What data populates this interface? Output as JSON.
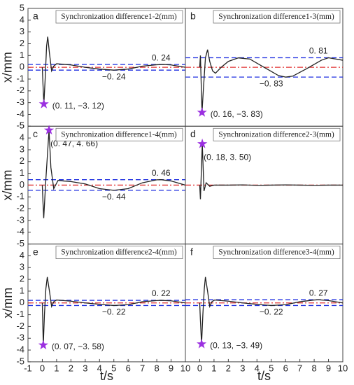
{
  "chart_data": [
    {
      "type": "line",
      "letter": "a",
      "title": "Synchronization difference1-2(mm)",
      "xlim": [
        -1,
        10
      ],
      "ylim": [
        -5,
        5
      ],
      "yticks": [
        -5,
        -4,
        -3,
        -2,
        -1,
        0,
        1,
        2,
        3,
        4,
        5
      ],
      "ylabel": "x/mm",
      "x": [
        0,
        0.05,
        0.11,
        0.2,
        0.3,
        0.38,
        0.5,
        0.65,
        0.8,
        1,
        1.5,
        2,
        3,
        4,
        5,
        6,
        7,
        8,
        8.5,
        9,
        10
      ],
      "series": [
        {
          "color": "#222222",
          "values": [
            0,
            -1.5,
            -3.12,
            -1,
            1.8,
            2.6,
            1.2,
            -0.3,
            0.1,
            0.3,
            0.25,
            0.2,
            0,
            -0.15,
            -0.24,
            -0.15,
            0.1,
            0.22,
            0.24,
            0.2,
            0
          ]
        }
      ],
      "bands": [
        {
          "value": 0.24,
          "label": "0. 24"
        },
        {
          "value": -0.24,
          "label": "−0. 24"
        }
      ],
      "band_color": "#1f2fe0",
      "zero_color": "#e03030",
      "star": {
        "x": 0.11,
        "y": -3.12,
        "label": "(0. 11, −3. 12)",
        "color": "#9b30e0"
      }
    },
    {
      "type": "line",
      "letter": "b",
      "title": "Synchronization difference1-3(mm)",
      "xlim": [
        -1,
        10
      ],
      "ylim": [
        -5,
        5
      ],
      "x": [
        0,
        0.05,
        0.16,
        0.25,
        0.4,
        0.55,
        0.7,
        0.9,
        1.1,
        1.5,
        2,
        2.7,
        3.5,
        4.5,
        5.5,
        6,
        6.5,
        7.5,
        8.5,
        9,
        10
      ],
      "series": [
        {
          "color": "#222222",
          "values": [
            0,
            1.0,
            -3.83,
            -2,
            0.8,
            1.5,
            0.5,
            -0.3,
            -0.5,
            0,
            0.5,
            0.8,
            0.7,
            0,
            -0.7,
            -0.83,
            -0.75,
            -0.1,
            0.6,
            0.81,
            0.6
          ]
        }
      ],
      "bands": [
        {
          "value": 0.81,
          "label": "0. 81"
        },
        {
          "value": -0.83,
          "label": "−0. 83"
        }
      ],
      "band_color": "#1f2fe0",
      "zero_color": "#e03030",
      "star": {
        "x": 0.16,
        "y": -3.83,
        "label": "(0. 16, −3. 83)",
        "color": "#9b30e0"
      }
    },
    {
      "type": "line",
      "letter": "c",
      "title": "Synchronization difference1-4(mm)",
      "xlim": [
        -1,
        10
      ],
      "ylim": [
        -5,
        5
      ],
      "yticks": [
        -5,
        -4,
        -3,
        -2,
        -1,
        0,
        1,
        2,
        3,
        4,
        5
      ],
      "ylabel": "x/mm",
      "x": [
        0,
        0.05,
        0.1,
        0.25,
        0.47,
        0.6,
        0.8,
        1.1,
        1.5,
        2,
        3,
        4,
        5,
        6,
        7,
        8,
        8.3,
        9,
        10
      ],
      "series": [
        {
          "color": "#222222",
          "values": [
            0,
            -1.5,
            -2.8,
            0.5,
            4.66,
            1.5,
            -0.3,
            0.4,
            0.35,
            0.3,
            0.1,
            -0.3,
            -0.44,
            -0.3,
            0.2,
            0.45,
            0.46,
            0.35,
            0
          ]
        }
      ],
      "bands": [
        {
          "value": 0.46,
          "label": "0. 46"
        },
        {
          "value": -0.44,
          "label": "−0. 44"
        }
      ],
      "band_color": "#1f2fe0",
      "zero_color": "#e03030",
      "star": {
        "x": 0.47,
        "y": 4.66,
        "label": "(0. 47, 4. 66)",
        "color": "#9b30e0"
      }
    },
    {
      "type": "line",
      "letter": "d",
      "title": "Synchronization difference2-3(mm)",
      "xlim": [
        -1,
        10
      ],
      "ylim": [
        -5,
        5
      ],
      "x": [
        0,
        0.05,
        0.18,
        0.3,
        0.45,
        0.7,
        1,
        2,
        3,
        4,
        5,
        6,
        7,
        8,
        9,
        10
      ],
      "series": [
        {
          "color": "#222222",
          "values": [
            0,
            -1.2,
            3.5,
            -0.5,
            0.2,
            -0.1,
            0,
            0,
            0.02,
            -0.02,
            0,
            0.02,
            0,
            -0.02,
            0,
            0
          ]
        }
      ],
      "zero_color": "#e03030",
      "star": {
        "x": 0.18,
        "y": 3.5,
        "label": "(0. 18, 3. 50)",
        "color": "#9b30e0"
      }
    },
    {
      "type": "line",
      "letter": "e",
      "title": "Synchronization difference2-4(mm)",
      "xlim": [
        -1,
        10
      ],
      "ylim": [
        -5,
        5
      ],
      "yticks": [
        -5,
        -4,
        -3,
        -2,
        -1,
        0,
        1,
        2,
        3,
        4
      ],
      "ylabel": "x/mm",
      "xticks": [
        -1,
        0,
        1,
        2,
        3,
        4,
        5,
        6,
        7,
        8,
        9,
        10
      ],
      "xlabel": "t/s",
      "x": [
        0,
        0.03,
        0.07,
        0.15,
        0.25,
        0.35,
        0.5,
        0.65,
        0.8,
        1,
        1.5,
        2,
        3,
        4,
        5,
        6,
        7,
        8,
        8.3,
        9,
        10
      ],
      "series": [
        {
          "color": "#222222",
          "values": [
            0,
            -1.5,
            -3.58,
            -1,
            1.2,
            2.2,
            1.0,
            -0.3,
            0.1,
            0.25,
            0.2,
            0.15,
            0,
            -0.12,
            -0.22,
            -0.15,
            0.1,
            0.2,
            0.22,
            0.18,
            0
          ]
        }
      ],
      "bands": [
        {
          "value": 0.22,
          "label": "0. 22"
        },
        {
          "value": -0.22,
          "label": "−0. 22"
        }
      ],
      "band_color": "#1f2fe0",
      "zero_color": "#e03030",
      "star": {
        "x": 0.07,
        "y": -3.58,
        "label": "(0. 07, −3. 58)",
        "color": "#9b30e0"
      }
    },
    {
      "type": "line",
      "letter": "f",
      "title": "Synchronization difference3-4(mm)",
      "xlim": [
        -1,
        10
      ],
      "ylim": [
        -5,
        5
      ],
      "xticks": [
        0,
        1,
        2,
        3,
        4,
        5,
        6,
        7,
        8,
        9,
        10
      ],
      "xlabel": "t/s",
      "x": [
        0,
        0.05,
        0.13,
        0.22,
        0.32,
        0.4,
        0.55,
        0.7,
        0.85,
        1.05,
        1.5,
        2,
        3,
        4,
        5,
        6,
        7,
        8,
        8.3,
        9,
        10
      ],
      "series": [
        {
          "color": "#222222",
          "values": [
            0,
            -1.5,
            -3.49,
            -1,
            1.2,
            2.2,
            1.0,
            -0.3,
            0.1,
            0.25,
            0.2,
            0.15,
            0,
            -0.12,
            -0.22,
            -0.15,
            0.1,
            0.25,
            0.27,
            0.2,
            0
          ]
        }
      ],
      "bands": [
        {
          "value": 0.27,
          "label": "0. 27"
        },
        {
          "value": -0.22,
          "label": "−0. 22"
        }
      ],
      "band_color": "#1f2fe0",
      "zero_color": "#e03030",
      "star": {
        "x": 0.13,
        "y": -3.49,
        "label": "(0. 13, −3. 49)",
        "color": "#9b30e0"
      }
    }
  ]
}
